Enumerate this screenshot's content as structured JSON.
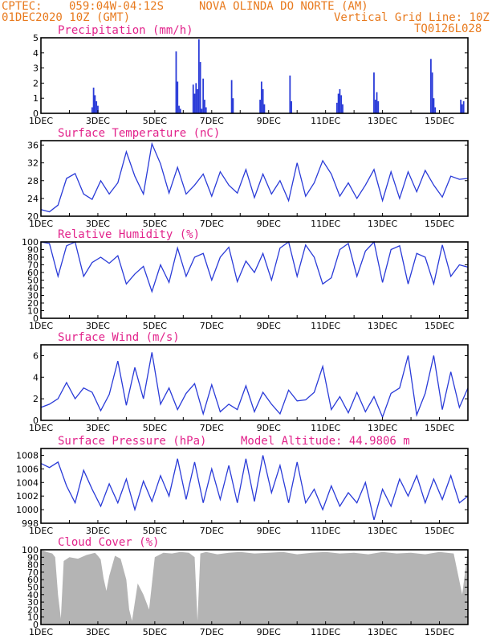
{
  "header": {
    "source": "CPTEC:",
    "coords": "059:04W-04:12S",
    "location": "NOVA OLINDA DO NORTE (AM)",
    "datetime": "01DEC2020 10Z (GMT)",
    "grid_note": "Vertical Grid Line: 10Z",
    "model_code": "TQ0126L028"
  },
  "x_axis": {
    "tick_labels": [
      "1DEC",
      "3DEC",
      "5DEC",
      "7DEC",
      "9DEC",
      "11DEC",
      "13DEC",
      "15DEC"
    ],
    "tick_days": [
      1,
      3,
      5,
      7,
      9,
      11,
      13,
      15
    ],
    "range_days": [
      1,
      16
    ]
  },
  "colors": {
    "line": "#2a3bd8",
    "title": "#e2238b",
    "header": "#e87a1e",
    "cloud": "#b4b4b4",
    "bar": "#2a3bd8"
  },
  "chart_data": [
    {
      "type": "bar",
      "title": "Precipitation (mm/h)",
      "ylim": [
        0,
        5
      ],
      "yticks": [
        0,
        1,
        2,
        3,
        4,
        5
      ],
      "x": [
        2.8,
        2.85,
        2.9,
        2.95,
        3.0,
        5.75,
        5.8,
        5.85,
        5.9,
        6.35,
        6.4,
        6.45,
        6.5,
        6.55,
        6.6,
        6.65,
        6.7,
        6.75,
        6.8,
        7.7,
        7.75,
        8.7,
        8.75,
        8.8,
        8.85,
        9.75,
        9.8,
        11.4,
        11.45,
        11.5,
        11.55,
        11.6,
        12.7,
        12.75,
        12.8,
        12.85,
        14.7,
        14.75,
        14.8,
        14.85,
        15.75,
        15.8,
        15.85
      ],
      "values": [
        0.4,
        1.7,
        1.2,
        0.8,
        0.5,
        4.1,
        2.1,
        0.5,
        0.3,
        1.9,
        1.3,
        2.0,
        1.6,
        4.9,
        3.4,
        0.3,
        2.3,
        0.9,
        0.4,
        2.2,
        1.0,
        0.9,
        2.1,
        1.6,
        0.6,
        2.5,
        0.8,
        0.7,
        1.3,
        1.6,
        1.2,
        0.6,
        2.7,
        0.9,
        1.4,
        0.8,
        3.6,
        2.7,
        1.0,
        0.4,
        0.9,
        0.6,
        0.8
      ]
    },
    {
      "type": "line",
      "title": "Surface Temperature (nC)",
      "ylim": [
        20,
        37
      ],
      "yticks": [
        20,
        24,
        28,
        32,
        36
      ],
      "x": [
        1,
        1.3,
        1.6,
        1.9,
        2.2,
        2.5,
        2.8,
        3.1,
        3.4,
        3.7,
        4.0,
        4.3,
        4.6,
        4.9,
        5.2,
        5.5,
        5.8,
        6.1,
        6.4,
        6.7,
        7.0,
        7.3,
        7.6,
        7.9,
        8.2,
        8.5,
        8.8,
        9.1,
        9.4,
        9.7,
        10.0,
        10.3,
        10.6,
        10.9,
        11.2,
        11.5,
        11.8,
        12.1,
        12.4,
        12.7,
        13.0,
        13.3,
        13.6,
        13.9,
        14.2,
        14.5,
        14.8,
        15.1,
        15.4,
        15.7,
        16.0
      ],
      "values": [
        21.5,
        21.0,
        22.5,
        28.5,
        29.6,
        25.0,
        23.8,
        28.0,
        25.0,
        27.5,
        34.5,
        29.0,
        25.0,
        36.3,
        31.8,
        25.2,
        31.0,
        25.0,
        27.0,
        29.5,
        24.5,
        30.0,
        27.0,
        25.2,
        30.5,
        24.2,
        29.5,
        25.0,
        28.0,
        23.5,
        32.0,
        24.5,
        27.5,
        32.5,
        29.5,
        24.5,
        27.5,
        24.0,
        27.0,
        30.5,
        23.5,
        30.0,
        24.0,
        30.0,
        25.5,
        30.3,
        27.0,
        24.3,
        29.0,
        28.3,
        28.5
      ]
    },
    {
      "type": "line",
      "title": "Relative Humidity (%)",
      "ylim": [
        0,
        100
      ],
      "yticks": [
        0,
        10,
        20,
        30,
        40,
        50,
        60,
        70,
        80,
        90,
        100
      ],
      "x": [
        1,
        1.3,
        1.6,
        1.9,
        2.2,
        2.5,
        2.8,
        3.1,
        3.4,
        3.7,
        4.0,
        4.3,
        4.6,
        4.9,
        5.2,
        5.5,
        5.8,
        6.1,
        6.4,
        6.7,
        7.0,
        7.3,
        7.6,
        7.9,
        8.2,
        8.5,
        8.8,
        9.1,
        9.4,
        9.7,
        10.0,
        10.3,
        10.6,
        10.9,
        11.2,
        11.5,
        11.8,
        12.1,
        12.4,
        12.7,
        13.0,
        13.3,
        13.6,
        13.9,
        14.2,
        14.5,
        14.8,
        15.1,
        15.4,
        15.7,
        16.0
      ],
      "values": [
        100,
        98,
        55,
        95,
        100,
        55,
        73,
        80,
        72,
        82,
        45,
        58,
        68,
        35,
        70,
        47,
        92,
        55,
        80,
        85,
        50,
        80,
        93,
        48,
        75,
        60,
        85,
        50,
        92,
        100,
        55,
        96,
        80,
        45,
        53,
        90,
        98,
        55,
        88,
        100,
        47,
        90,
        95,
        45,
        85,
        80,
        45,
        96,
        55,
        70,
        67
      ]
    },
    {
      "type": "line",
      "title": "Surface Wind (m/s)",
      "ylim": [
        0,
        7
      ],
      "yticks": [
        0,
        2,
        4,
        6
      ],
      "x": [
        1,
        1.3,
        1.6,
        1.9,
        2.2,
        2.5,
        2.8,
        3.1,
        3.4,
        3.7,
        4.0,
        4.3,
        4.6,
        4.9,
        5.2,
        5.5,
        5.8,
        6.1,
        6.4,
        6.7,
        7.0,
        7.3,
        7.6,
        7.9,
        8.2,
        8.5,
        8.8,
        9.1,
        9.4,
        9.7,
        10.0,
        10.3,
        10.6,
        10.9,
        11.2,
        11.5,
        11.8,
        12.1,
        12.4,
        12.7,
        13.0,
        13.3,
        13.6,
        13.9,
        14.2,
        14.5,
        14.8,
        15.1,
        15.4,
        15.7,
        16.0
      ],
      "values": [
        1.2,
        1.5,
        2.0,
        3.5,
        2.0,
        3.0,
        2.6,
        0.9,
        2.4,
        5.5,
        1.4,
        4.9,
        2.0,
        6.3,
        1.5,
        3.0,
        1.0,
        2.5,
        3.4,
        0.6,
        3.3,
        0.8,
        1.5,
        1.0,
        3.2,
        0.8,
        2.6,
        1.5,
        0.6,
        2.8,
        1.8,
        1.9,
        2.6,
        5.0,
        1.0,
        2.2,
        0.7,
        2.6,
        0.8,
        2.2,
        0.3,
        2.5,
        3.0,
        6.0,
        0.5,
        2.5,
        6.0,
        1.0,
        4.5,
        1.2,
        3.0
      ]
    },
    {
      "type": "line",
      "title": "Surface Pressure (hPa)",
      "annotation": "Model Altitude: 44.9806 m",
      "ylim": [
        998,
        1009
      ],
      "yticks": [
        998,
        1000,
        1002,
        1004,
        1006,
        1008
      ],
      "x": [
        1,
        1.3,
        1.6,
        1.9,
        2.2,
        2.5,
        2.8,
        3.1,
        3.4,
        3.7,
        4.0,
        4.3,
        4.6,
        4.9,
        5.2,
        5.5,
        5.8,
        6.1,
        6.4,
        6.7,
        7.0,
        7.3,
        7.6,
        7.9,
        8.2,
        8.5,
        8.8,
        9.1,
        9.4,
        9.7,
        10.0,
        10.3,
        10.6,
        10.9,
        11.2,
        11.5,
        11.8,
        12.1,
        12.4,
        12.7,
        13.0,
        13.3,
        13.6,
        13.9,
        14.2,
        14.5,
        14.8,
        15.1,
        15.4,
        15.7,
        16.0
      ],
      "values": [
        1006.8,
        1006.2,
        1007.0,
        1003.5,
        1001.0,
        1005.8,
        1003.0,
        1000.5,
        1003.8,
        1001.0,
        1004.5,
        1000.0,
        1004.2,
        1001.2,
        1005.0,
        1002.0,
        1007.5,
        1001.5,
        1007.0,
        1001.0,
        1006.0,
        1001.5,
        1006.5,
        1001.0,
        1007.5,
        1001.2,
        1008.0,
        1002.5,
        1006.5,
        1001.0,
        1007.0,
        1001.0,
        1003.0,
        1000.0,
        1003.5,
        1000.5,
        1002.5,
        1001.0,
        1004.0,
        998.5,
        1003.0,
        1000.5,
        1004.5,
        1002.0,
        1005.0,
        1001.0,
        1004.5,
        1001.5,
        1005.0,
        1001.0,
        1002.0
      ]
    },
    {
      "type": "area",
      "title": "Cloud Cover (%)",
      "ylim": [
        0,
        100
      ],
      "yticks": [
        0,
        10,
        20,
        30,
        40,
        50,
        60,
        70,
        80,
        90,
        100
      ],
      "x": [
        1,
        1.2,
        1.4,
        1.5,
        1.6,
        1.7,
        1.8,
        2.0,
        2.3,
        2.6,
        2.9,
        3.0,
        3.1,
        3.2,
        3.3,
        3.4,
        3.6,
        3.8,
        4.0,
        4.1,
        4.2,
        4.4,
        4.6,
        4.8,
        5.0,
        5.3,
        5.6,
        5.9,
        6.2,
        6.4,
        6.5,
        6.6,
        6.8,
        7.2,
        7.6,
        8.0,
        8.5,
        9.0,
        9.5,
        10.0,
        10.5,
        11.0,
        11.5,
        12.0,
        12.5,
        13.0,
        13.5,
        14.0,
        14.5,
        15.0,
        15.5,
        15.8,
        16.0
      ],
      "values": [
        100,
        97,
        95,
        90,
        40,
        8,
        85,
        90,
        88,
        93,
        96,
        92,
        87,
        62,
        45,
        65,
        92,
        88,
        60,
        20,
        5,
        55,
        40,
        20,
        90,
        96,
        95,
        97,
        96,
        90,
        5,
        95,
        97,
        94,
        96,
        97,
        95,
        96,
        97,
        94,
        96,
        97,
        95,
        96,
        94,
        97,
        95,
        96,
        94,
        97,
        95,
        40,
        100
      ]
    }
  ]
}
